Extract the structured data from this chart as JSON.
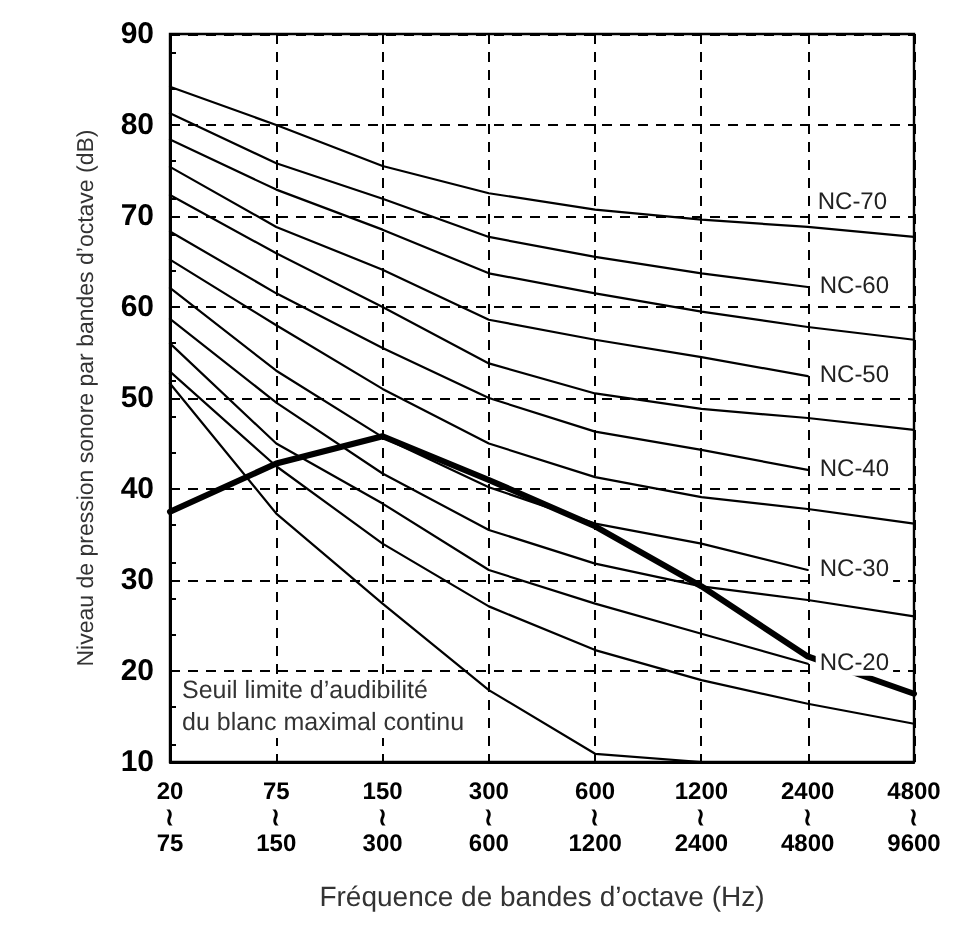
{
  "chart_data": {
    "type": "line",
    "xlabel": "Fréquence de bandes d’octave (Hz)",
    "ylabel": "Niveau de pression sonore par bandes d’octave (dB)",
    "categories": [
      "20\n≀\n75",
      "75\n≀\n150",
      "150\n≀\n300",
      "300\n≀\n600",
      "600\n≀\n1200",
      "1200\n≀\n2400",
      "2400\n≀\n4800",
      "4800\n≀\n9600"
    ],
    "ylim": [
      10,
      90
    ],
    "yticks": [
      10,
      20,
      30,
      40,
      50,
      60,
      70,
      80,
      90
    ],
    "grid": true,
    "marker": "none",
    "line_style": "solid",
    "series": [
      {
        "name": "NC-70",
        "color": "#000000",
        "values": [
          84.2,
          80.0,
          75.5,
          72.5,
          70.7,
          69.6,
          68.8,
          67.7
        ]
      },
      {
        "name": "NC-60",
        "color": "#000000",
        "values": [
          81.3,
          75.8,
          71.9,
          67.7,
          65.5,
          63.7,
          62.2,
          null
        ]
      },
      {
        "color": "#000000",
        "values": [
          78.4,
          72.9,
          68.5,
          63.7,
          61.5,
          59.5,
          57.8,
          56.4
        ]
      },
      {
        "name": "NC-50",
        "color": "#000000",
        "values": [
          75.4,
          68.8,
          64.1,
          58.6,
          56.4,
          54.5,
          52.4,
          null
        ]
      },
      {
        "color": "#000000",
        "values": [
          72.3,
          65.9,
          60.0,
          53.8,
          50.5,
          48.8,
          47.8,
          46.5
        ]
      },
      {
        "name": "NC-40",
        "color": "#000000",
        "values": [
          68.3,
          61.5,
          55.5,
          50.0,
          46.3,
          44.3,
          42.1,
          null
        ]
      },
      {
        "color": "#000000",
        "values": [
          65.2,
          58.0,
          51.0,
          45.0,
          41.3,
          39.1,
          37.8,
          36.2
        ]
      },
      {
        "name": "NC-30",
        "color": "#000000",
        "values": [
          62.1,
          53.0,
          45.7,
          40.2,
          36.2,
          34.0,
          31.1,
          null
        ]
      },
      {
        "color": "#000000",
        "values": [
          58.7,
          49.5,
          41.7,
          35.5,
          31.8,
          29.3,
          27.8,
          26.0
        ]
      },
      {
        "name": "NC-20",
        "color": "#000000",
        "values": [
          56.0,
          45.0,
          38.4,
          31.1,
          27.4,
          24.1,
          20.8,
          null
        ]
      },
      {
        "color": "#000000",
        "values": [
          52.9,
          42.5,
          34.0,
          27.1,
          22.3,
          19.0,
          16.4,
          14.2
        ]
      },
      {
        "color": "#000000",
        "values": [
          51.6,
          37.3,
          27.4,
          17.9,
          10.9,
          10.0,
          null,
          null
        ]
      },
      {
        "color": "#000000",
        "values": [
          37.5,
          42.8,
          45.8,
          41.0,
          35.9,
          29.3,
          21.6,
          17.5
        ]
      }
    ],
    "annotations": [
      "Seuil limite d’audibilité\ndu blanc maximal continu"
    ]
  }
}
